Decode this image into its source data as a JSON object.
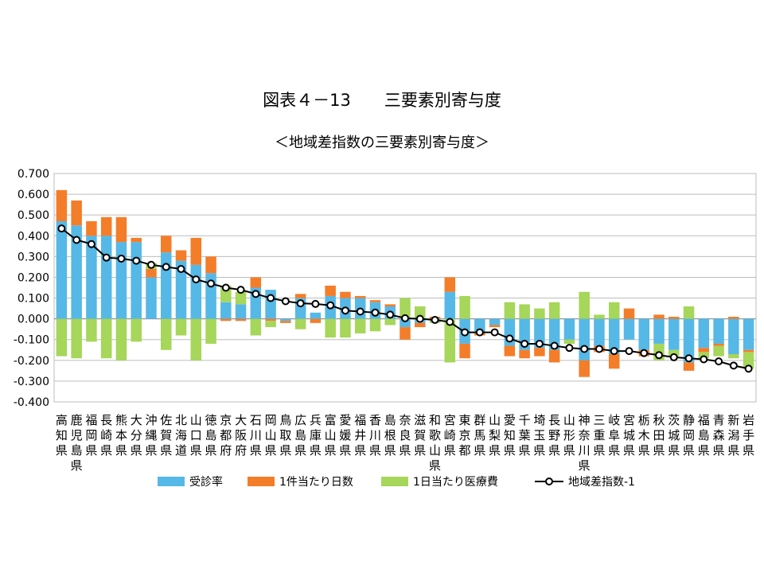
{
  "title": "図表４－13　　三要素別寄与度",
  "subtitle": "＜地域差指数の三要素別寄与度＞",
  "chart_data": {
    "type": "bar",
    "stacked": true,
    "categories": [
      "高知県",
      "鹿児島県",
      "福岡県",
      "長崎県",
      "熊本県",
      "大分県",
      "沖縄県",
      "佐賀県",
      "北海道",
      "山口県",
      "徳島県",
      "京都府",
      "大阪府",
      "石川県",
      "岡山県",
      "鳥取県",
      "広島県",
      "兵庫県",
      "富山県",
      "愛媛県",
      "福井県",
      "香川県",
      "島根県",
      "奈良県",
      "滋賀県",
      "和歌山県",
      "宮崎県",
      "東京都",
      "群馬県",
      "山梨県",
      "愛知県",
      "千葉県",
      "埼玉県",
      "長野県",
      "山形県",
      "神奈川県",
      "三重県",
      "岐阜県",
      "宮城県",
      "栃木県",
      "秋田県",
      "茨城県",
      "静岡県",
      "福島県",
      "青森県",
      "新潟県",
      "岩手県"
    ],
    "ylim": [
      -0.4,
      0.7
    ],
    "yticks": [
      "0.700",
      "0.600",
      "0.500",
      "0.400",
      "0.300",
      "0.200",
      "0.100",
      "0.000",
      "-0.100",
      "-0.200",
      "-0.300",
      "-0.400"
    ],
    "grid": true,
    "legend": "bottom",
    "series": [
      {
        "name": "受診率",
        "color": "#56b8e6",
        "values": [
          0.47,
          0.45,
          0.4,
          0.4,
          0.37,
          0.37,
          0.2,
          0.32,
          0.28,
          0.26,
          0.22,
          0.08,
          0.07,
          0.15,
          0.14,
          -0.01,
          0.1,
          0.03,
          0.11,
          0.1,
          0.1,
          0.08,
          0.06,
          -0.04,
          -0.02,
          -0.01,
          0.13,
          -0.12,
          -0.07,
          -0.03,
          -0.13,
          -0.15,
          -0.14,
          -0.15,
          -0.1,
          -0.2,
          -0.13,
          -0.17,
          -0.1,
          -0.15,
          -0.12,
          -0.15,
          -0.21,
          -0.14,
          -0.12,
          -0.17,
          -0.15
        ]
      },
      {
        "name": "1件当たり日数",
        "color": "#f47d2a",
        "values": [
          0.15,
          0.12,
          0.07,
          0.09,
          0.12,
          0.02,
          0.04,
          0.08,
          0.05,
          0.13,
          0.08,
          -0.01,
          -0.01,
          0.05,
          -0.01,
          -0.01,
          0.02,
          -0.02,
          0.05,
          0.03,
          0.01,
          0.01,
          0.01,
          -0.06,
          -0.02,
          0.01,
          0.07,
          -0.07,
          -0.01,
          -0.01,
          -0.05,
          -0.04,
          -0.04,
          -0.06,
          0.0,
          -0.08,
          -0.03,
          -0.07,
          0.05,
          -0.03,
          0.02,
          0.01,
          -0.04,
          -0.02,
          -0.01,
          0.01,
          -0.01
        ]
      },
      {
        "name": "1日当たり医療費",
        "color": "#a6d65a",
        "values": [
          -0.18,
          -0.19,
          -0.11,
          -0.19,
          -0.2,
          -0.11,
          0.03,
          -0.15,
          -0.08,
          -0.2,
          -0.12,
          0.08,
          0.06,
          -0.08,
          -0.03,
          0.0,
          -0.05,
          0.0,
          -0.09,
          -0.09,
          -0.07,
          -0.06,
          -0.03,
          0.1,
          0.06,
          -0.01,
          -0.21,
          0.11,
          0.0,
          0.0,
          0.08,
          0.07,
          0.05,
          0.08,
          -0.02,
          0.13,
          0.02,
          0.08,
          0.0,
          0.0,
          -0.08,
          -0.03,
          0.06,
          -0.03,
          -0.05,
          -0.02,
          -0.08
        ]
      },
      {
        "name": "地域差指数-1",
        "color": "#000000",
        "type": "line",
        "values": [
          0.435,
          0.38,
          0.36,
          0.295,
          0.29,
          0.28,
          0.26,
          0.25,
          0.24,
          0.19,
          0.17,
          0.15,
          0.14,
          0.12,
          0.1,
          0.085,
          0.075,
          0.072,
          0.065,
          0.04,
          0.035,
          0.03,
          0.02,
          0.003,
          0.0,
          -0.005,
          -0.015,
          -0.065,
          -0.065,
          -0.065,
          -0.095,
          -0.12,
          -0.12,
          -0.13,
          -0.14,
          -0.145,
          -0.145,
          -0.155,
          -0.155,
          -0.165,
          -0.175,
          -0.185,
          -0.19,
          -0.195,
          -0.205,
          -0.225,
          -0.24
        ]
      }
    ]
  }
}
